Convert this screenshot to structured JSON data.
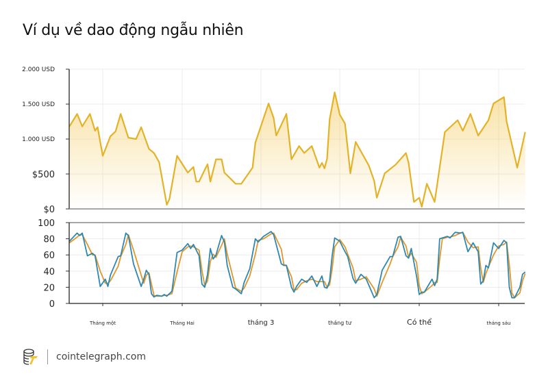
{
  "title": "Ví dụ về dao động ngẫu nhiên",
  "footer": {
    "site": "cointelegraph.com",
    "logo_icon": "cointelegraph-logo-icon"
  },
  "colors": {
    "price": "#E3B227",
    "fast": "#2D87B0",
    "slow": "#E0962A",
    "grid": "#ECECEC"
  },
  "chart_data": [
    {
      "type": "area",
      "ylim": [
        0,
        2000
      ],
      "yticks": [
        {
          "value": 2000,
          "label": "2.000 USD"
        },
        {
          "value": 1500,
          "label": "1.500 USD"
        },
        {
          "value": 1000,
          "label": "1.000 USD"
        },
        {
          "value": 500,
          "label": "$500"
        },
        {
          "value": 0,
          "label": "$0"
        }
      ],
      "grid": true,
      "x": [
        "12-19",
        "12-22",
        "12-24",
        "12-27",
        "12-29",
        "12-30",
        "01-01",
        "01-04",
        "01-06",
        "01-08",
        "01-11",
        "01-14",
        "01-16",
        "01-19",
        "01-21",
        "01-23",
        "01-26",
        "01-27",
        "01-30",
        "02-03",
        "02-05",
        "02-06",
        "02-07",
        "02-09",
        "02-10",
        "02-11",
        "02-13",
        "02-15",
        "02-16",
        "02-20",
        "02-22",
        "02-26",
        "02-27",
        "03-04",
        "03-06",
        "03-07",
        "03-11",
        "03-13",
        "03-16",
        "03-18",
        "03-21",
        "03-24",
        "03-25",
        "03-26",
        "03-27",
        "03-28",
        "03-30",
        "04-01",
        "04-03",
        "04-05",
        "04-07",
        "04-12",
        "04-14",
        "04-15",
        "04-18",
        "04-22",
        "04-26",
        "04-27",
        "04-29",
        "05-01",
        "05-02",
        "05-04",
        "05-07",
        "05-11",
        "05-16",
        "05-18",
        "05-21",
        "05-24",
        "05-28",
        "05-30",
        "06-03",
        "06-04",
        "06-08",
        "06-11"
      ],
      "values": [
        1180,
        1360,
        1180,
        1360,
        1120,
        1170,
        760,
        1040,
        1110,
        1360,
        1020,
        1000,
        1170,
        860,
        800,
        670,
        60,
        140,
        760,
        520,
        600,
        390,
        390,
        560,
        640,
        390,
        710,
        710,
        520,
        360,
        360,
        590,
        950,
        1510,
        1300,
        1050,
        1360,
        710,
        900,
        800,
        900,
        590,
        660,
        580,
        720,
        1280,
        1670,
        1350,
        1220,
        510,
        960,
        620,
        400,
        160,
        510,
        630,
        800,
        660,
        100,
        160,
        30,
        360,
        100,
        1100,
        1270,
        1120,
        1360,
        1050,
        1270,
        1510,
        1600,
        1250,
        590,
        1100
      ]
    },
    {
      "type": "line",
      "ylim": [
        0,
        100
      ],
      "yticks": [
        0,
        20,
        40,
        60,
        80,
        100
      ],
      "grid": true,
      "x": [
        "12-19",
        "12-22",
        "12-23",
        "12-24",
        "12-26",
        "12-28",
        "12-29",
        "12-31",
        "01-02",
        "01-03",
        "01-04",
        "01-07",
        "01-08",
        "01-10",
        "01-11",
        "01-13",
        "01-16",
        "01-17",
        "01-18",
        "01-19",
        "01-20",
        "01-21",
        "01-22",
        "01-24",
        "01-25",
        "01-26",
        "01-28",
        "01-30",
        "02-01",
        "02-03",
        "02-04",
        "02-05",
        "02-07",
        "02-08",
        "02-09",
        "02-10",
        "02-11",
        "02-12",
        "02-13",
        "02-15",
        "02-16",
        "02-17",
        "02-19",
        "02-20",
        "02-22",
        "02-23",
        "02-25",
        "02-27",
        "02-28",
        "03-02",
        "03-05",
        "03-06",
        "03-09",
        "03-10",
        "03-11",
        "03-13",
        "03-14",
        "03-15",
        "03-17",
        "03-19",
        "03-21",
        "03-23",
        "03-25",
        "03-26",
        "03-27",
        "03-28",
        "03-29",
        "03-30",
        "04-01",
        "04-03",
        "04-04",
        "04-06",
        "04-07",
        "04-09",
        "04-11",
        "04-14",
        "04-15",
        "04-17",
        "04-20",
        "04-21",
        "04-23",
        "04-24",
        "04-26",
        "04-27",
        "04-28",
        "04-30",
        "05-01",
        "05-02",
        "05-03",
        "05-06",
        "05-07",
        "05-08",
        "05-09",
        "05-10",
        "05-12",
        "05-13",
        "05-15",
        "05-17",
        "05-18",
        "05-20",
        "05-22",
        "05-24",
        "05-25",
        "05-26",
        "05-27",
        "05-28",
        "05-30",
        "06-01",
        "06-03",
        "06-04",
        "06-05",
        "06-06",
        "06-07",
        "06-09",
        "06-10",
        "06-11"
      ],
      "series": [
        {
          "color": "#2D87B0",
          "values": [
            77,
            87,
            84,
            87,
            59,
            62,
            59,
            21,
            30,
            21,
            35,
            58,
            59,
            87,
            84,
            49,
            21,
            30,
            41,
            36,
            12,
            8,
            10,
            9,
            11,
            9,
            15,
            63,
            66,
            74,
            68,
            73,
            59,
            24,
            20,
            36,
            68,
            55,
            60,
            84,
            76,
            47,
            20,
            18,
            12,
            26,
            43,
            80,
            76,
            83,
            89,
            85,
            49,
            47,
            47,
            20,
            14,
            21,
            30,
            26,
            34,
            21,
            34,
            20,
            19,
            28,
            59,
            81,
            77,
            64,
            58,
            31,
            25,
            36,
            30,
            7,
            11,
            41,
            58,
            58,
            82,
            83,
            59,
            56,
            68,
            34,
            11,
            14,
            14,
            30,
            22,
            30,
            80,
            81,
            83,
            81,
            88,
            87,
            88,
            64,
            75,
            64,
            24,
            28,
            47,
            44,
            75,
            68,
            78,
            75,
            20,
            7,
            7,
            20,
            36,
            39
          ]
        },
        {
          "color": "#E0962A",
          "values": [
            75,
            82,
            85,
            85,
            73,
            60,
            60,
            40,
            25,
            25,
            28,
            46,
            58,
            73,
            85,
            66,
            35,
            25,
            35,
            38,
            24,
            10,
            9,
            9,
            10,
            10,
            12,
            39,
            64,
            70,
            71,
            70,
            66,
            41,
            22,
            28,
            52,
            61,
            57,
            72,
            80,
            61,
            33,
            19,
            15,
            19,
            34,
            61,
            78,
            80,
            86,
            87,
            67,
            48,
            47,
            33,
            17,
            17,
            25,
            28,
            30,
            27,
            27,
            27,
            20,
            23,
            43,
            70,
            79,
            70,
            61,
            44,
            28,
            30,
            33,
            18,
            9,
            26,
            49,
            58,
            70,
            82,
            71,
            57,
            62,
            51,
            22,
            12,
            14,
            22,
            26,
            26,
            55,
            80,
            82,
            82,
            84,
            87,
            88,
            76,
            69,
            70,
            44,
            26,
            37,
            45,
            60,
            71,
            73,
            76,
            48,
            13,
            7,
            13,
            28,
            37
          ]
        }
      ]
    }
  ],
  "x_axis": {
    "months": [
      {
        "month": 1,
        "label": "Tháng một"
      },
      {
        "month": 2,
        "label": "Tháng Hai"
      },
      {
        "month": 3,
        "label": "tháng 3"
      },
      {
        "month": 4,
        "label": "tháng tư"
      },
      {
        "month": 5,
        "label": "Có thể"
      },
      {
        "month": 6,
        "label": "tháng sáu"
      }
    ]
  }
}
